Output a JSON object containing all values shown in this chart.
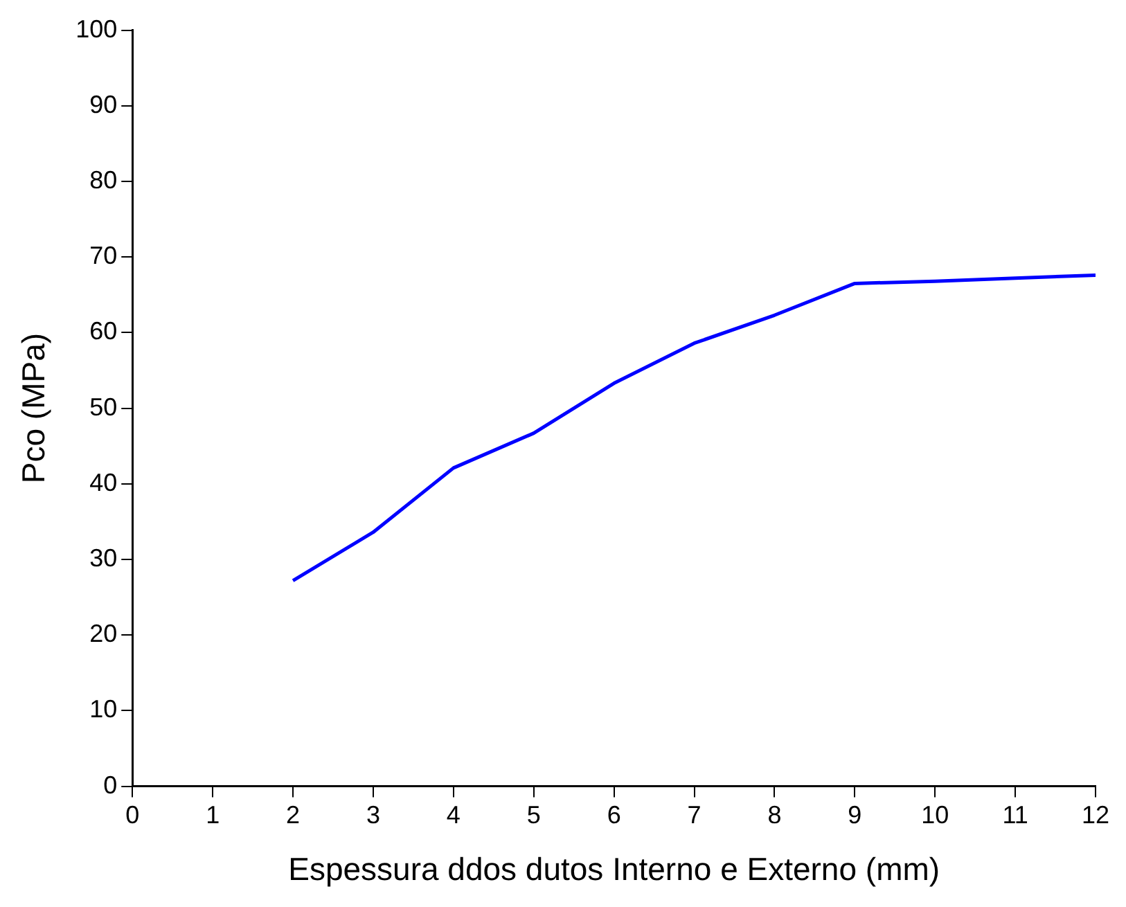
{
  "chart_data": {
    "type": "line",
    "xlabel": "Espessura ddos dutos Interno e Externo (mm)",
    "ylabel": "Pco (MPa)",
    "x": [
      2,
      3,
      4,
      5,
      6,
      7,
      8,
      9,
      10,
      11,
      12
    ],
    "series": [
      {
        "color": "#0000ff",
        "values": [
          27.2,
          33.6,
          42.1,
          46.7,
          53.3,
          58.6,
          62.3,
          66.5,
          66.8,
          67.2,
          67.6
        ]
      }
    ],
    "xlim": [
      0,
      12
    ],
    "xticks": [
      0,
      1,
      2,
      3,
      4,
      5,
      6,
      7,
      8,
      9,
      10,
      11,
      12
    ],
    "ylim": [
      0,
      100
    ],
    "yticks": [
      0,
      10,
      20,
      30,
      40,
      50,
      60,
      70,
      80,
      90,
      100
    ],
    "grid": false,
    "legend": false,
    "marker": "none",
    "line_style": "solid"
  }
}
